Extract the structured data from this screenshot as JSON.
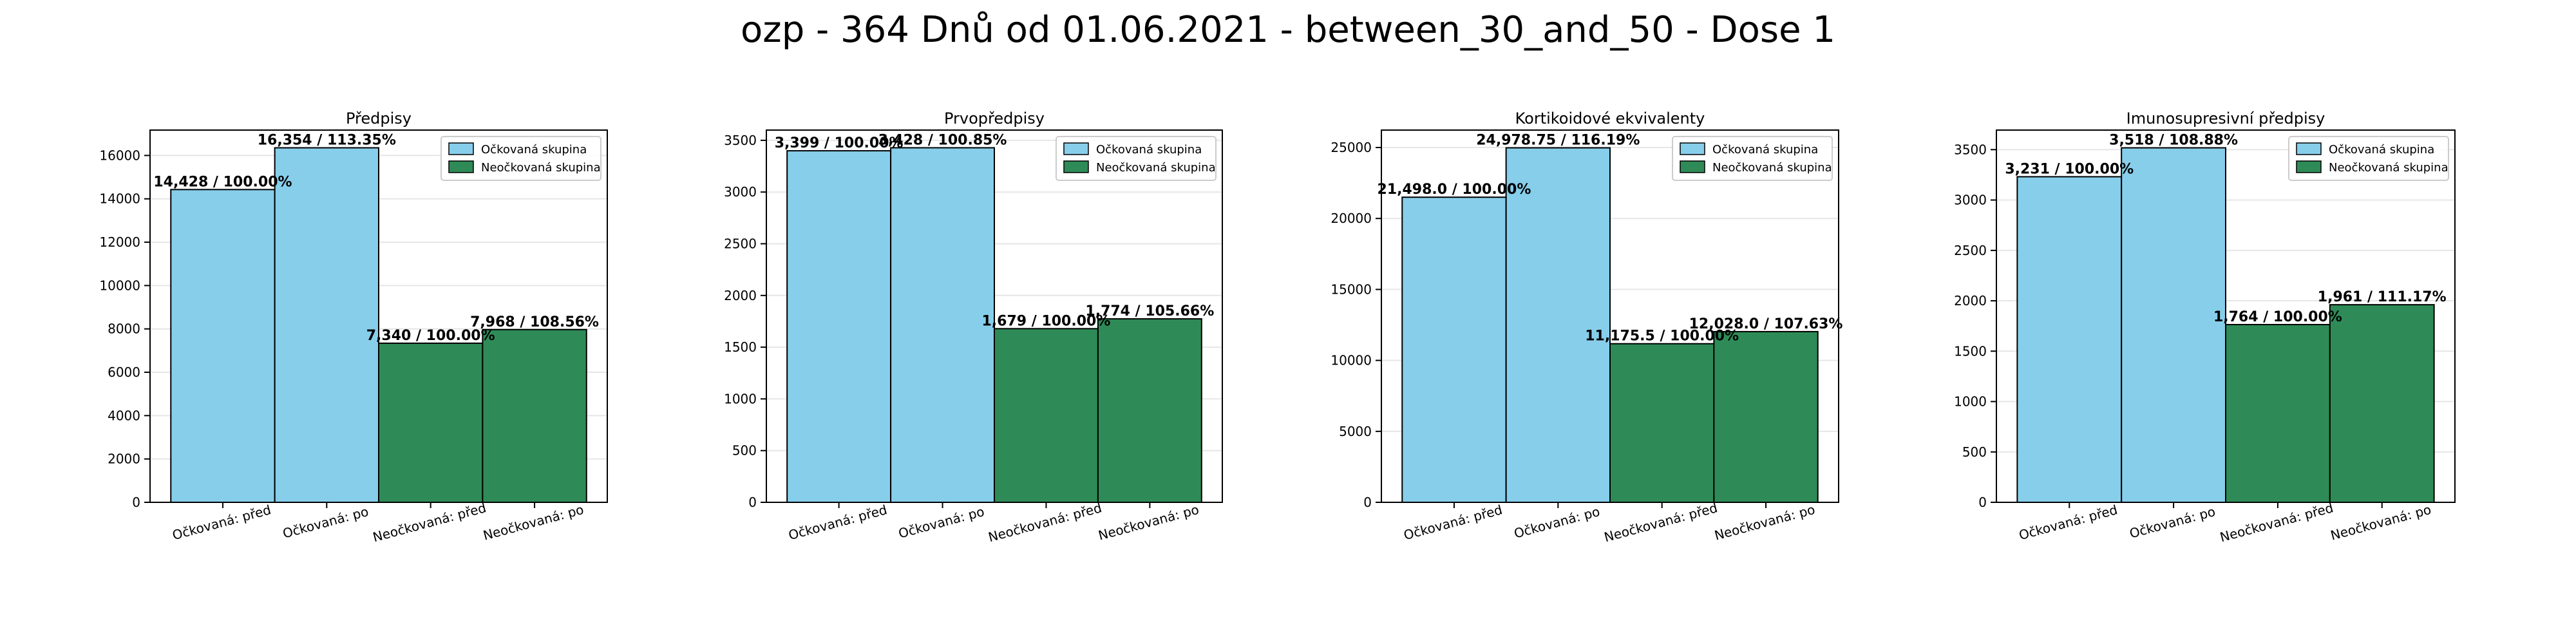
{
  "suptitle": "ozp - 364 Dnů od 01.06.2021 - between_30_and_50 - Dose 1",
  "colors": {
    "vaccinated": "#87ceeb",
    "unvaccinated": "#2e8b57",
    "edge": "#000000",
    "grid": "#e6e6e6"
  },
  "chart_data": [
    {
      "type": "bar",
      "title": "Předpisy",
      "categories": [
        "Očkovaná: před",
        "Očkovaná: po",
        "Neočkovaná: před",
        "Neočkovaná: po"
      ],
      "values": [
        14428,
        16354,
        7340,
        7968
      ],
      "labels": [
        "14,428 / 100.00%",
        "16,354 / 113.35%",
        "7,340 / 100.00%",
        "7,968 / 108.56%"
      ],
      "ylim": [
        0,
        17171
      ],
      "yticks": [
        0,
        2000,
        4000,
        6000,
        8000,
        10000,
        12000,
        14000,
        16000
      ],
      "legend": [
        "Očkovaná skupina",
        "Neočkovaná skupina"
      ],
      "legend_position": "top-right",
      "grid": true
    },
    {
      "type": "bar",
      "title": "Prvopředpisy",
      "categories": [
        "Očkovaná: před",
        "Očkovaná: po",
        "Neočkovaná: před",
        "Neočkovaná: po"
      ],
      "values": [
        3399,
        3428,
        1679,
        1774
      ],
      "labels": [
        "3,399 / 100.00%",
        "3,428 / 100.85%",
        "1,679 / 100.00%",
        "1,774 / 105.66%"
      ],
      "ylim": [
        0,
        3599
      ],
      "yticks": [
        0,
        500,
        1000,
        1500,
        2000,
        2500,
        3000,
        3500
      ],
      "legend": [
        "Očkovaná skupina",
        "Neočkovaná skupina"
      ],
      "legend_position": "top-right",
      "grid": true
    },
    {
      "type": "bar",
      "title": "Kortikoidové ekvivalenty",
      "categories": [
        "Očkovaná: před",
        "Očkovaná: po",
        "Neočkovaná: před",
        "Neočkovaná: po"
      ],
      "values": [
        21498.0,
        24978.75,
        11175.5,
        12028.0
      ],
      "labels": [
        "21,498.0 / 100.00%",
        "24,978.75 / 116.19%",
        "11,175.5 / 100.00%",
        "12,028.0 / 107.63%"
      ],
      "ylim": [
        0,
        26228
      ],
      "yticks": [
        0,
        5000,
        10000,
        15000,
        20000,
        25000
      ],
      "legend": [
        "Očkovaná skupina",
        "Neočkovaná skupina"
      ],
      "legend_position": "top-right",
      "grid": true
    },
    {
      "type": "bar",
      "title": "Imunosupresivní předpisy",
      "categories": [
        "Očkovaná: před",
        "Očkovaná: po",
        "Neočkovaná: před",
        "Neočkovaná: po"
      ],
      "values": [
        3231,
        3518,
        1764,
        1961
      ],
      "labels": [
        "3,231 / 100.00%",
        "3,518 / 108.88%",
        "1,764 / 100.00%",
        "1,961 / 111.17%"
      ],
      "ylim": [
        0,
        3694
      ],
      "yticks": [
        0,
        500,
        1000,
        1500,
        2000,
        2500,
        3000,
        3500
      ],
      "legend": [
        "Očkovaná skupina",
        "Neočkovaná skupina"
      ],
      "legend_position": "top-right",
      "grid": true
    }
  ]
}
